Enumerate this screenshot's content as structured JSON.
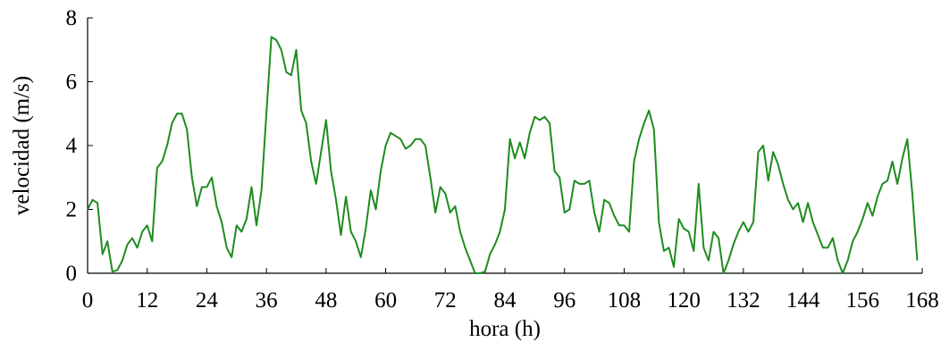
{
  "chart_data": {
    "type": "line",
    "title": "",
    "xlabel": "hora (h)",
    "ylabel": "velocidad (m/s)",
    "xlim": [
      0,
      168
    ],
    "ylim": [
      0,
      8
    ],
    "xticks": [
      0,
      12,
      24,
      36,
      48,
      60,
      72,
      84,
      96,
      108,
      120,
      132,
      144,
      156,
      168
    ],
    "yticks": [
      0,
      2,
      4,
      6,
      8
    ],
    "grid": false,
    "legend": "none",
    "series": [
      {
        "color": "#1e8c1e",
        "x": [
          0,
          1,
          2,
          3,
          4,
          5,
          6,
          7,
          8,
          9,
          10,
          11,
          12,
          13,
          14,
          15,
          16,
          17,
          18,
          19,
          20,
          21,
          22,
          23,
          24,
          25,
          26,
          27,
          28,
          29,
          30,
          31,
          32,
          33,
          34,
          35,
          36,
          37,
          38,
          39,
          40,
          41,
          42,
          43,
          44,
          45,
          46,
          47,
          48,
          49,
          50,
          51,
          52,
          53,
          54,
          55,
          56,
          57,
          58,
          59,
          60,
          61,
          62,
          63,
          64,
          65,
          66,
          67,
          68,
          69,
          70,
          71,
          72,
          73,
          74,
          75,
          76,
          77,
          78,
          79,
          80,
          81,
          82,
          83,
          84,
          85,
          86,
          87,
          88,
          89,
          90,
          91,
          92,
          93,
          94,
          95,
          96,
          97,
          98,
          99,
          100,
          101,
          102,
          103,
          104,
          105,
          106,
          107,
          108,
          109,
          110,
          111,
          112,
          113,
          114,
          115,
          116,
          117,
          118,
          119,
          120,
          121,
          122,
          123,
          124,
          125,
          126,
          127,
          128,
          129,
          130,
          131,
          132,
          133,
          134,
          135,
          136,
          137,
          138,
          139,
          140,
          141,
          142,
          143,
          144,
          145,
          146,
          147,
          148,
          149,
          150,
          151,
          152,
          153,
          154,
          155,
          156,
          157,
          158,
          159,
          160,
          161,
          162,
          163,
          164,
          165,
          166,
          167
        ],
        "y": [
          2.0,
          2.3,
          2.2,
          0.6,
          1.0,
          0.05,
          0.1,
          0.4,
          0.9,
          1.1,
          0.8,
          1.3,
          1.5,
          1.0,
          3.3,
          3.5,
          4.0,
          4.7,
          5.0,
          5.0,
          4.5,
          3.0,
          2.1,
          2.7,
          2.7,
          3.0,
          2.1,
          1.6,
          0.8,
          0.5,
          1.5,
          1.3,
          1.7,
          2.7,
          1.5,
          2.6,
          5.0,
          7.4,
          7.3,
          7.0,
          6.3,
          6.2,
          7.0,
          5.1,
          4.7,
          3.5,
          2.8,
          3.8,
          4.8,
          3.2,
          2.3,
          1.2,
          2.4,
          1.3,
          1.0,
          0.5,
          1.4,
          2.6,
          2.0,
          3.2,
          4.0,
          4.4,
          4.3,
          4.2,
          3.9,
          4.0,
          4.2,
          4.2,
          4.0,
          3.0,
          1.9,
          2.7,
          2.5,
          1.9,
          2.1,
          1.3,
          0.8,
          0.4,
          0.0,
          0.0,
          0.05,
          0.6,
          0.9,
          1.3,
          2.0,
          4.2,
          3.6,
          4.1,
          3.6,
          4.4,
          4.9,
          4.8,
          4.9,
          4.7,
          3.2,
          3.0,
          1.9,
          2.0,
          2.9,
          2.8,
          2.8,
          2.9,
          1.9,
          1.3,
          2.3,
          2.2,
          1.8,
          1.5,
          1.5,
          1.3,
          3.5,
          4.2,
          4.7,
          5.1,
          4.5,
          1.6,
          0.7,
          0.8,
          0.2,
          1.7,
          1.4,
          1.3,
          0.7,
          2.8,
          0.8,
          0.4,
          1.3,
          1.1,
          0.0,
          0.4,
          0.9,
          1.3,
          1.6,
          1.3,
          1.6,
          3.8,
          4.0,
          2.9,
          3.8,
          3.4,
          2.8,
          2.3,
          2.0,
          2.2,
          1.6,
          2.2,
          1.6,
          1.2,
          0.8,
          0.8,
          1.1,
          0.4,
          0.0,
          0.4,
          1.0,
          1.3,
          1.7,
          2.2,
          1.8,
          2.4,
          2.8,
          2.9,
          3.5,
          2.8,
          3.6,
          4.2,
          2.5,
          0.4
        ]
      }
    ]
  }
}
